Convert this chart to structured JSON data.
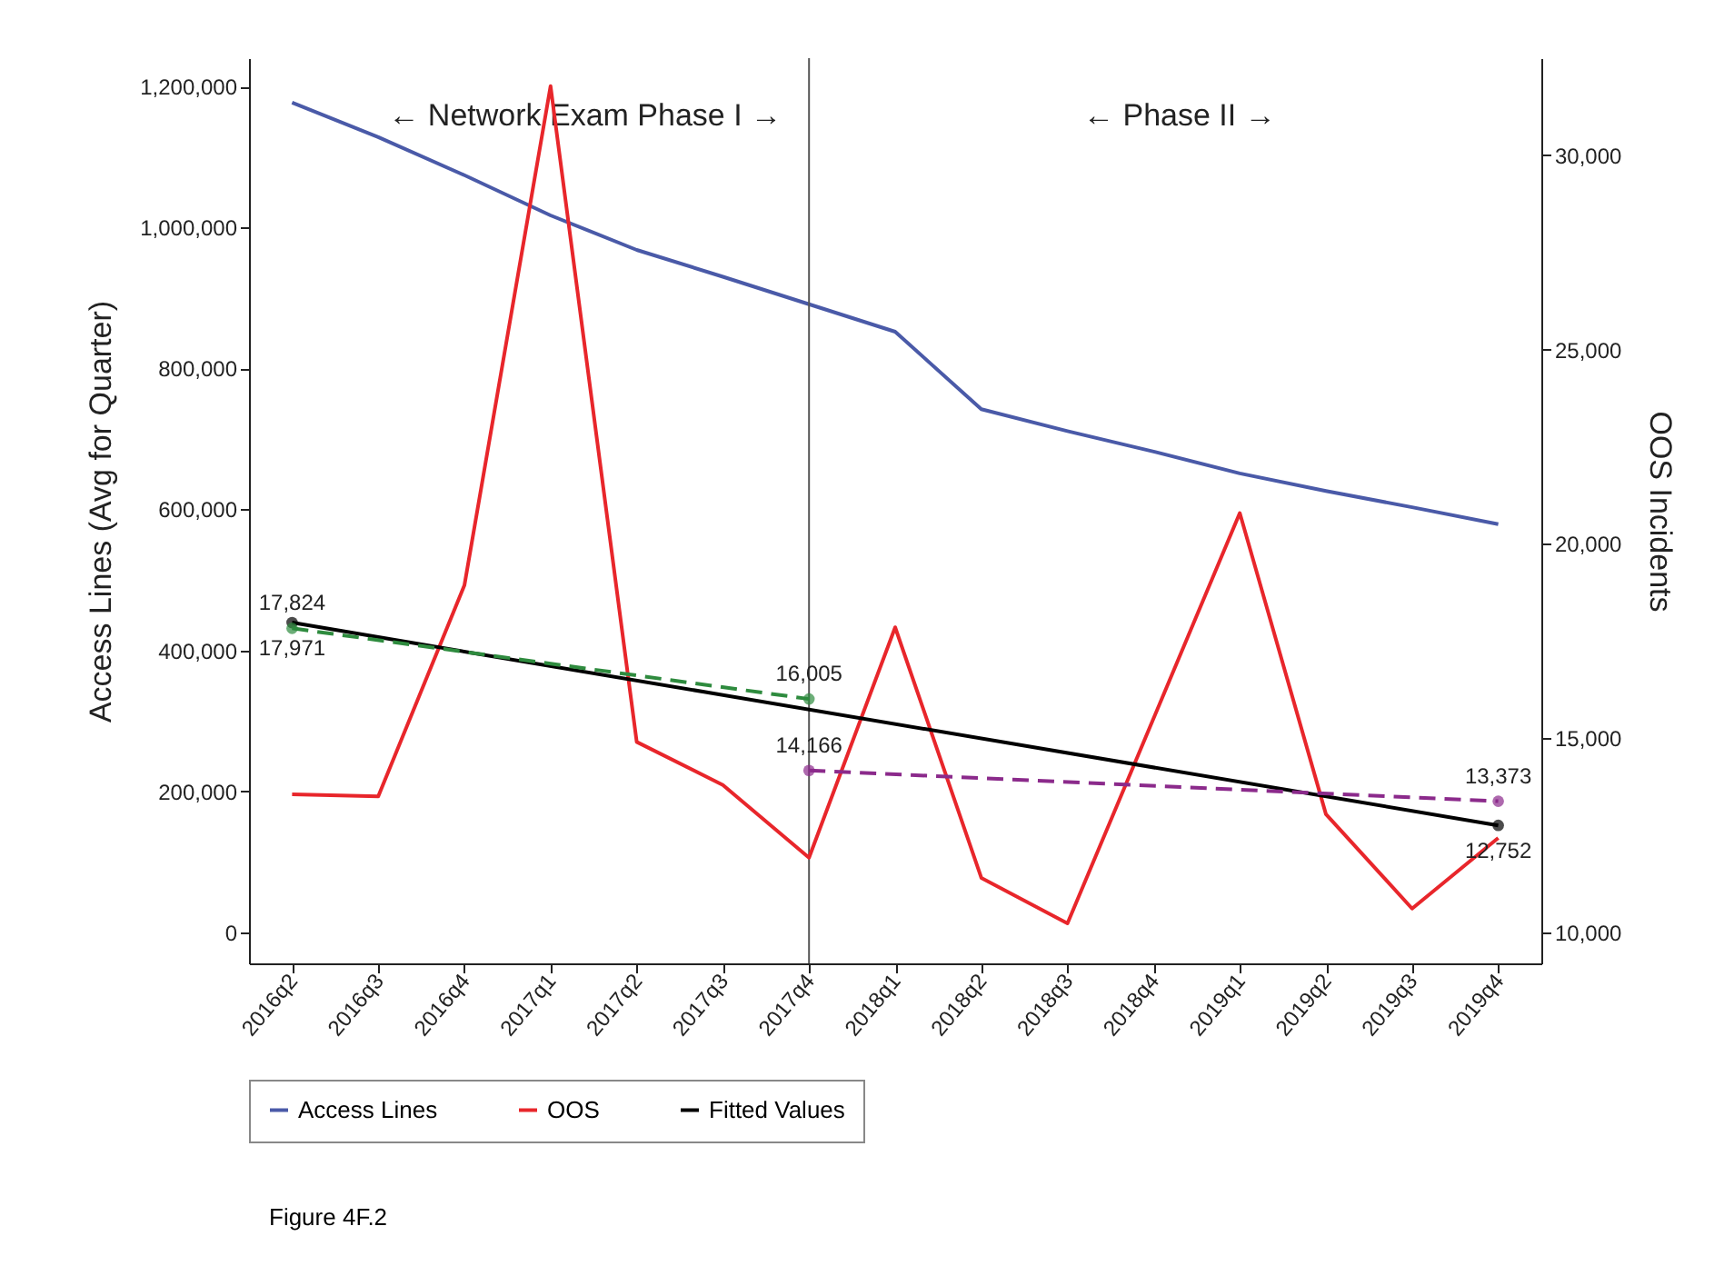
{
  "chart_data": {
    "type": "line",
    "categories": [
      "2016q2",
      "2016q3",
      "2016q4",
      "2017q1",
      "2017q2",
      "2017q3",
      "2017q4",
      "2018q1",
      "2018q2",
      "2018q3",
      "2018q4",
      "2019q1",
      "2019q2",
      "2019q3",
      "2019q4"
    ],
    "series": [
      {
        "name": "Access Lines",
        "color": "#4a5aa8",
        "values": [
          1177000,
          1128000,
          1074000,
          1017000,
          968000,
          930000,
          891000,
          852000,
          742000,
          711000,
          682000,
          651000,
          626000,
          603000,
          579000
        ]
      },
      {
        "name": "OOS",
        "color": "#e8262b",
        "axis": "y2",
        "values": [
          13550,
          13500,
          18930,
          31780,
          14900,
          13790,
          11920,
          17850,
          11400,
          10230,
          15510,
          20790,
          13040,
          10610,
          12430
        ]
      },
      {
        "name": "Fitted Values",
        "color": "#000000",
        "axis": "y2",
        "x": [
          "2016q2",
          "2019q4"
        ],
        "values": [
          17971,
          12752
        ],
        "marker": "circle",
        "value_labels": [
          "17,971",
          "12,752"
        ]
      },
      {
        "color": "#2e8b3e",
        "axis": "y2",
        "x": [
          "2016q2",
          "2017q4"
        ],
        "values": [
          17824,
          16005
        ],
        "marker": "circle",
        "line_style": "dashed",
        "value_labels": [
          "17,824",
          "16,005"
        ]
      },
      {
        "color": "#8b2a8b",
        "axis": "y2",
        "x": [
          "2017q4",
          "2019q4"
        ],
        "values": [
          14166,
          13373
        ],
        "marker": "circle",
        "line_style": "dashed",
        "value_labels": [
          "14,166",
          "13,373"
        ]
      }
    ],
    "ylabel": "Access Lines (Avg for Quarter)",
    "y2label": "OOS Incidents",
    "ylim": [
      -44000,
      1240000
    ],
    "yticks": [
      0,
      {
        "value": 200000,
        "label": "200,000"
      },
      {
        "value": 400000,
        "label": "400,000"
      },
      {
        "value": 600000,
        "label": "600,000"
      },
      {
        "value": 800000,
        "label": "800,000"
      },
      {
        "value": 1000000,
        "label": "1,000,000"
      },
      {
        "value": 1200000,
        "label": "1,200,000"
      }
    ],
    "y2lim": [
      9200,
      32500
    ],
    "y2ticks": [
      {
        "value": 10000,
        "label": "10,000"
      },
      {
        "value": 15000,
        "label": "15,000"
      },
      {
        "value": 20000,
        "label": "20,000"
      },
      {
        "value": 25000,
        "label": "25,000"
      },
      {
        "value": 30000,
        "label": "30,000"
      }
    ],
    "ref_lines": [
      {
        "axis": "x",
        "value": "2017q4",
        "color": "#555555"
      }
    ],
    "annotations": [
      "← Network Exam Phase I →",
      "← Phase II →",
      "Figure 4F.2"
    ],
    "legend": "bottom"
  }
}
